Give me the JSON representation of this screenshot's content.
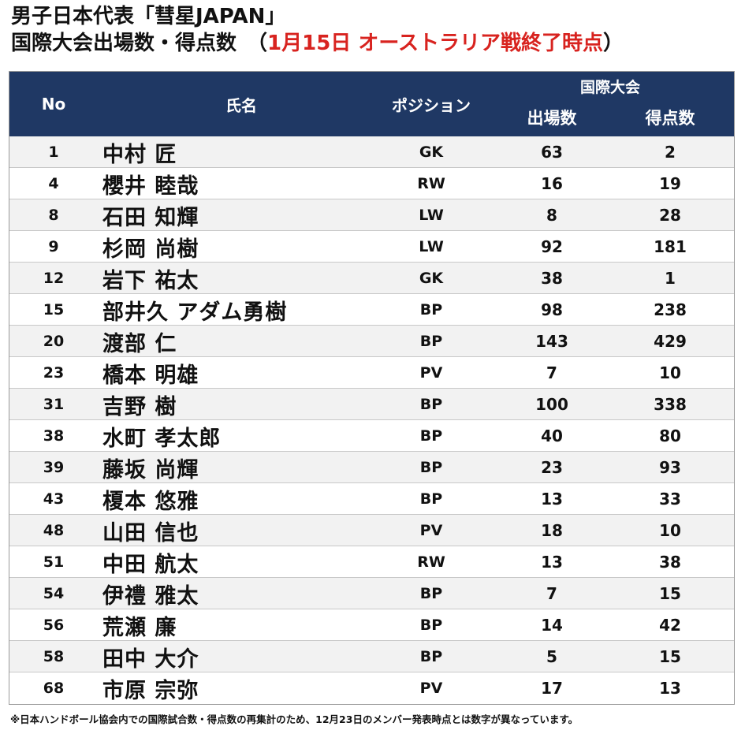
{
  "title": {
    "line1": "男子日本代表「彗星JAPAN」",
    "line2_prefix": "国際大会出場数・得点数　（",
    "line2_accent": "1月15日 オーストラリア戦終了時点",
    "line2_suffix": "）"
  },
  "colors": {
    "header_bg": "#1f3864",
    "accent": "#d8231f",
    "row_alt": "#f2f2f2"
  },
  "table": {
    "headers": {
      "no": "No",
      "name": "氏名",
      "position": "ポジション",
      "group": "国際大会",
      "caps": "出場数",
      "goals": "得点数"
    },
    "rows": [
      {
        "no": "1",
        "name": "中村 匠",
        "position": "GK",
        "caps": "63",
        "goals": "2"
      },
      {
        "no": "4",
        "name": "櫻井 睦哉",
        "position": "RW",
        "caps": "16",
        "goals": "19"
      },
      {
        "no": "8",
        "name": "石田 知輝",
        "position": "LW",
        "caps": "8",
        "goals": "28"
      },
      {
        "no": "9",
        "name": "杉岡 尚樹",
        "position": "LW",
        "caps": "92",
        "goals": "181"
      },
      {
        "no": "12",
        "name": "岩下 祐太",
        "position": "GK",
        "caps": "38",
        "goals": "1"
      },
      {
        "no": "15",
        "name": "部井久 アダム勇樹",
        "position": "BP",
        "caps": "98",
        "goals": "238"
      },
      {
        "no": "20",
        "name": "渡部 仁",
        "position": "BP",
        "caps": "143",
        "goals": "429"
      },
      {
        "no": "23",
        "name": "橋本 明雄",
        "position": "PV",
        "caps": "7",
        "goals": "10"
      },
      {
        "no": "31",
        "name": "吉野 樹",
        "position": "BP",
        "caps": "100",
        "goals": "338"
      },
      {
        "no": "38",
        "name": "水町 孝太郎",
        "position": "BP",
        "caps": "40",
        "goals": "80"
      },
      {
        "no": "39",
        "name": "藤坂 尚輝",
        "position": "BP",
        "caps": "23",
        "goals": "93"
      },
      {
        "no": "43",
        "name": "榎本 悠雅",
        "position": "BP",
        "caps": "13",
        "goals": "33"
      },
      {
        "no": "48",
        "name": "山田 信也",
        "position": "PV",
        "caps": "18",
        "goals": "10"
      },
      {
        "no": "51",
        "name": "中田 航太",
        "position": "RW",
        "caps": "13",
        "goals": "38"
      },
      {
        "no": "54",
        "name": "伊禮 雅太",
        "position": "BP",
        "caps": "7",
        "goals": "15"
      },
      {
        "no": "56",
        "name": "荒瀬 廉",
        "position": "BP",
        "caps": "14",
        "goals": "42"
      },
      {
        "no": "58",
        "name": "田中 大介",
        "position": "BP",
        "caps": "5",
        "goals": "15"
      },
      {
        "no": "68",
        "name": "市原 宗弥",
        "position": "PV",
        "caps": "17",
        "goals": "13"
      }
    ]
  },
  "footnote": "※日本ハンドボール協会内での国際試合数・得点数の再集計のため、12月23日のメンバー発表時点とは数字が異なっています。"
}
